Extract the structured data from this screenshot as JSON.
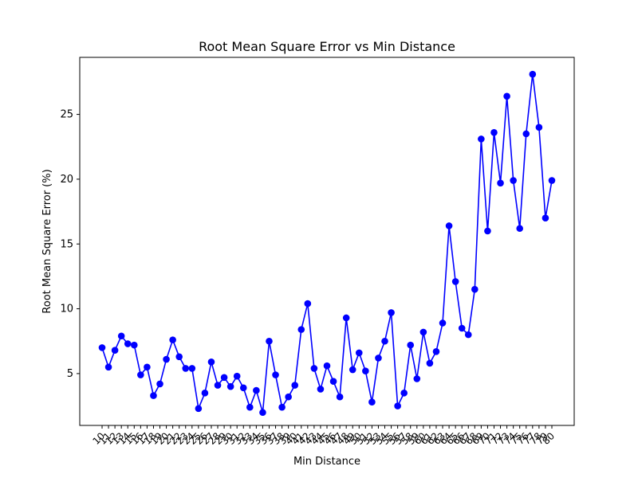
{
  "chart_data": {
    "type": "line",
    "title": "Root Mean Square Error vs Min Distance",
    "xlabel": "Min Distance",
    "ylabel": "Root Mean Square Error (%)",
    "ylim": [
      1.0,
      29.4
    ],
    "yticks": [
      5,
      10,
      15,
      20,
      25
    ],
    "grid": false,
    "legend": "none",
    "color": "#0000ff",
    "x": [
      "10",
      "11",
      "12",
      "13",
      "14",
      "15",
      "16",
      "17",
      "18",
      "19",
      "20",
      "21",
      "22",
      "23",
      "24",
      "25",
      "26",
      "27",
      "28",
      "29",
      "30",
      "31",
      "32",
      "33",
      "34",
      "35",
      "36",
      "37",
      "38",
      "39",
      "40",
      "41",
      "42",
      "43",
      "44",
      "45",
      "46",
      "47",
      "48",
      "49",
      "50",
      "51",
      "52",
      "53",
      "54",
      "55",
      "56",
      "57",
      "58",
      "59",
      "60",
      "61",
      "62",
      "63",
      "64",
      "65",
      "66",
      "67",
      "68",
      "69",
      "70",
      "71",
      "72",
      "73",
      "74",
      "75",
      "76",
      "77",
      "78",
      "79",
      "80"
    ],
    "y": [
      7.0,
      5.5,
      6.8,
      7.9,
      7.3,
      7.2,
      4.9,
      5.5,
      3.3,
      4.2,
      6.1,
      7.6,
      6.3,
      5.4,
      5.4,
      2.3,
      3.5,
      5.9,
      4.1,
      4.7,
      4.0,
      4.8,
      3.9,
      2.4,
      3.7,
      2.0,
      7.5,
      4.9,
      2.4,
      3.2,
      4.1,
      8.4,
      10.4,
      5.4,
      3.8,
      5.6,
      4.4,
      3.2,
      9.3,
      5.3,
      6.6,
      5.2,
      2.8,
      6.2,
      7.5,
      9.7,
      2.5,
      3.5,
      7.2,
      4.6,
      8.2,
      5.8,
      6.7,
      8.9,
      16.4,
      12.1,
      8.5,
      8.0,
      11.5,
      23.1,
      16.0,
      23.6,
      19.7,
      26.4,
      19.9,
      16.2,
      23.5,
      28.1,
      24.0,
      17.0,
      19.9
    ]
  }
}
